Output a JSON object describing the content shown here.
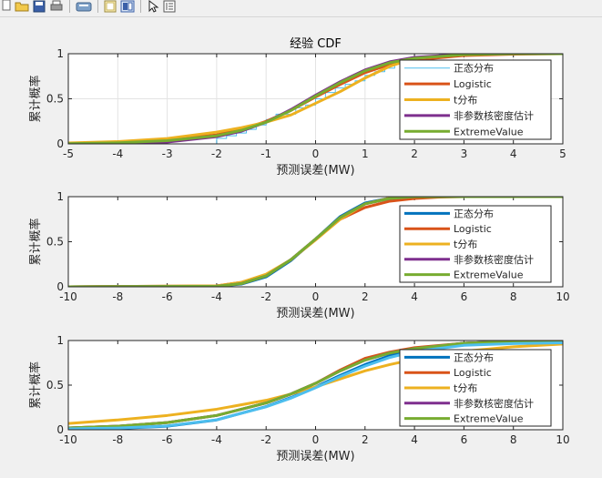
{
  "toolbar": {
    "icons": [
      "new-figure-icon",
      "open-file-icon",
      "save-icon",
      "print-icon",
      "print-preview-icon",
      "edit-plot-icon",
      "colorbar-icon",
      "legend-icon",
      "pointer-icon",
      "property-editor-icon"
    ]
  },
  "colors": {
    "series_1": "#0072BD",
    "series_1_light": "#4DBEEE",
    "series_2": "#D95319",
    "series_3": "#EDB120",
    "series_4": "#7E2F8E",
    "series_5": "#77AC30"
  },
  "chart_data": [
    {
      "type": "line",
      "title": "经验 CDF",
      "xlabel": "预测误差(MW)",
      "ylabel": "累计概率",
      "xlim": [
        -5,
        5
      ],
      "ylim": [
        0,
        1
      ],
      "xticks": [
        "-5",
        "-4",
        "-3",
        "-2",
        "-1",
        "0",
        "1",
        "2",
        "3",
        "4",
        "5"
      ],
      "yticks": [
        "0",
        "0.5",
        "1"
      ],
      "grid": true,
      "legend_placement": "right",
      "series": [
        {
          "name": "正态分布",
          "style": "stairs",
          "x": [
            -5,
            -2.0,
            -1.8,
            -1.6,
            -1.4,
            -1.2,
            -1.0,
            -0.8,
            -0.6,
            -0.4,
            -0.2,
            0.0,
            0.2,
            0.4,
            0.6,
            0.8,
            1.0,
            1.2,
            1.4,
            1.6,
            1.8,
            2.0,
            2.5,
            3.0,
            5
          ],
          "y": [
            0.0,
            0.06,
            0.09,
            0.12,
            0.16,
            0.21,
            0.27,
            0.33,
            0.33,
            0.4,
            0.43,
            0.5,
            0.57,
            0.62,
            0.66,
            0.7,
            0.76,
            0.8,
            0.84,
            0.9,
            0.94,
            0.97,
            0.99,
            1.0,
            1.0
          ]
        },
        {
          "name": "Logistic",
          "x": [
            -5,
            -4,
            -3,
            -2,
            -1.5,
            -1,
            -0.5,
            0,
            0.5,
            1,
            1.5,
            2,
            3,
            4,
            5
          ],
          "y": [
            0.005,
            0.015,
            0.04,
            0.1,
            0.16,
            0.25,
            0.37,
            0.52,
            0.66,
            0.79,
            0.88,
            0.93,
            0.98,
            0.995,
            1.0
          ]
        },
        {
          "name": "t分布",
          "x": [
            -5,
            -4,
            -3,
            -2,
            -1.5,
            -1,
            -0.5,
            0,
            0.5,
            1,
            1.5,
            2,
            3,
            4,
            5
          ],
          "y": [
            0.01,
            0.025,
            0.06,
            0.13,
            0.18,
            0.24,
            0.32,
            0.45,
            0.58,
            0.73,
            0.86,
            0.95,
            0.99,
            1.0,
            1.0
          ]
        },
        {
          "name": "非参数核密度估计",
          "x": [
            -5,
            -4,
            -3,
            -2,
            -1.5,
            -1,
            -0.5,
            0,
            0.5,
            1,
            1.5,
            2,
            3,
            4,
            5
          ],
          "y": [
            0.0,
            0.005,
            0.02,
            0.08,
            0.14,
            0.24,
            0.38,
            0.54,
            0.69,
            0.82,
            0.91,
            0.96,
            0.995,
            1.0,
            1.0
          ]
        },
        {
          "name": "ExtremeValue",
          "x": [
            -5,
            -4,
            -3,
            -2,
            -1.5,
            -1,
            -0.5,
            0,
            0.5,
            1,
            1.5,
            2,
            3,
            4,
            5
          ],
          "y": [
            0.003,
            0.012,
            0.035,
            0.09,
            0.15,
            0.24,
            0.37,
            0.53,
            0.68,
            0.81,
            0.9,
            0.95,
            0.99,
            1.0,
            1.0
          ]
        }
      ]
    },
    {
      "type": "line",
      "title": "",
      "xlabel": "预测误差(MW)",
      "ylabel": "累计概率",
      "xlim": [
        -10,
        10
      ],
      "ylim": [
        0,
        1
      ],
      "xticks": [
        "-10",
        "-8",
        "-6",
        "-4",
        "-2",
        "0",
        "2",
        "4",
        "6",
        "8",
        "10"
      ],
      "yticks": [
        "0",
        "0.5",
        "1"
      ],
      "grid": false,
      "legend_placement": "right",
      "series": [
        {
          "name": "正态分布",
          "x": [
            -10,
            -4,
            -3,
            -2,
            -1,
            0,
            1,
            2,
            3,
            4,
            10
          ],
          "y": [
            0.0,
            0.005,
            0.03,
            0.11,
            0.29,
            0.53,
            0.78,
            0.93,
            0.985,
            1.0,
            1.0
          ]
        },
        {
          "name": "Logistic",
          "x": [
            -10,
            -4,
            -3,
            -2,
            -1,
            0,
            1,
            2,
            3,
            4,
            5,
            6,
            10
          ],
          "y": [
            0.0,
            0.01,
            0.05,
            0.13,
            0.3,
            0.53,
            0.75,
            0.88,
            0.95,
            0.98,
            0.995,
            1.0,
            1.0
          ]
        },
        {
          "name": "t分布",
          "x": [
            -10,
            -4,
            -3,
            -2,
            -1,
            0,
            1,
            2,
            3,
            4,
            10
          ],
          "y": [
            0.0,
            0.01,
            0.05,
            0.14,
            0.3,
            0.52,
            0.75,
            0.92,
            0.985,
            1.0,
            1.0
          ]
        },
        {
          "name": "非参数核密度估计",
          "x": [
            -10,
            -4,
            -3,
            -2,
            -1,
            0,
            1,
            2,
            3,
            4,
            10
          ],
          "y": [
            0.0,
            0.006,
            0.035,
            0.12,
            0.3,
            0.53,
            0.77,
            0.92,
            0.98,
            1.0,
            1.0
          ]
        },
        {
          "name": "ExtremeValue",
          "x": [
            -10,
            -4,
            -3,
            -2,
            -1,
            0,
            1,
            2,
            3,
            4,
            10
          ],
          "y": [
            0.0,
            0.006,
            0.035,
            0.12,
            0.3,
            0.53,
            0.77,
            0.92,
            0.98,
            1.0,
            1.0
          ]
        }
      ]
    },
    {
      "type": "line",
      "title": "",
      "xlabel": "预测误差(MW)",
      "ylabel": "累计概率",
      "xlim": [
        -10,
        10
      ],
      "ylim": [
        0,
        1
      ],
      "xticks": [
        "-10",
        "-8",
        "-6",
        "-4",
        "-2",
        "0",
        "2",
        "4",
        "6",
        "8",
        "10"
      ],
      "yticks": [
        "0",
        "0.5",
        "1"
      ],
      "grid": false,
      "legend_placement": "right",
      "series": [
        {
          "name": "正态分布",
          "x": [
            -10,
            -8,
            -6,
            -4,
            -2,
            -1,
            0,
            1,
            2,
            3,
            4,
            6,
            8,
            10
          ],
          "y": [
            0.005,
            0.015,
            0.04,
            0.11,
            0.26,
            0.36,
            0.48,
            0.61,
            0.73,
            0.83,
            0.9,
            0.97,
            0.99,
            1.0
          ]
        },
        {
          "name": "Logistic",
          "x": [
            -10,
            -8,
            -6,
            -4,
            -2,
            -1,
            0,
            1,
            2,
            3,
            4,
            6,
            8,
            10
          ],
          "y": [
            0.02,
            0.04,
            0.08,
            0.16,
            0.3,
            0.4,
            0.52,
            0.67,
            0.8,
            0.87,
            0.92,
            0.97,
            0.99,
            1.0
          ]
        },
        {
          "name": "t分布",
          "x": [
            -10,
            -8,
            -6,
            -4,
            -2,
            -1,
            0,
            1,
            2,
            3,
            4,
            6,
            8,
            10
          ],
          "y": [
            0.07,
            0.11,
            0.16,
            0.23,
            0.33,
            0.4,
            0.48,
            0.57,
            0.66,
            0.73,
            0.79,
            0.88,
            0.93,
            0.96
          ]
        },
        {
          "name": "非参数核密度估计",
          "x": [
            -10,
            -8,
            -6,
            -4,
            -2,
            -1,
            0,
            1,
            2,
            3,
            4,
            6,
            8,
            10
          ],
          "y": [
            0.02,
            0.04,
            0.08,
            0.16,
            0.3,
            0.4,
            0.52,
            0.66,
            0.78,
            0.86,
            0.91,
            0.97,
            0.99,
            1.0
          ]
        },
        {
          "name": "ExtremeValue",
          "x": [
            -10,
            -8,
            -6,
            -4,
            -2,
            -1,
            0,
            1,
            2,
            3,
            4,
            6,
            8,
            10
          ],
          "y": [
            0.02,
            0.04,
            0.08,
            0.16,
            0.3,
            0.4,
            0.52,
            0.66,
            0.78,
            0.86,
            0.91,
            0.97,
            0.99,
            1.0
          ]
        }
      ]
    }
  ]
}
